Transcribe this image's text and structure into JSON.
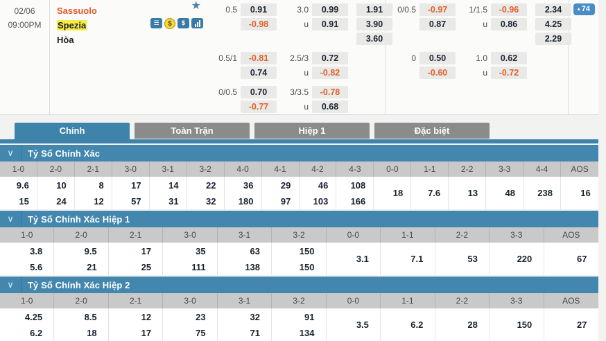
{
  "colors": {
    "accent_blue": "#3e83aa",
    "section_blue": "#4387ae",
    "badge_blue": "#4a8cc4",
    "icon_blue": "#3a7aa6",
    "coin_yellow": "#f6d63c",
    "odds_negative_orange": "#e2622d",
    "home_team_orange": "#e05a28",
    "highlight_yellow": "#f7ec46",
    "inactive_tab_gray": "#8b8b8b"
  },
  "match": {
    "date": "02/06",
    "time": "09:00PM",
    "home_team": "Sassuolo",
    "away_team": "Spezia",
    "draw_label": "Hòa",
    "count_badge": "74",
    "count_badge_arrow": "▴",
    "icons": [
      {
        "name": "bet-slip-icon",
        "glyph": "☰",
        "variant": "blue"
      },
      {
        "name": "dropping-odds-coin-icon",
        "glyph": "$",
        "variant": "coin"
      },
      {
        "name": "money-icon",
        "glyph": "$",
        "variant": "blue"
      },
      {
        "name": "bar-chart-icon",
        "glyph": "bars",
        "variant": "blue"
      }
    ]
  },
  "labels": {
    "under": "u"
  },
  "odds_groups": [
    {
      "name": "bookmaker-1",
      "blocks": [
        {
          "hdp_line": "0.5",
          "hdp": [
            "0.91",
            "-0.98"
          ],
          "ou_line": "3.0",
          "ou": [
            "0.99",
            "0.91"
          ],
          "x12": [
            "1.91",
            "3.90",
            "3.60"
          ]
        },
        {
          "hdp_line": "0.5/1",
          "hdp": [
            "-0.81",
            "0.74"
          ],
          "ou_line": "2.5/3",
          "ou": [
            "0.72",
            "-0.82"
          ]
        },
        {
          "hdp_line": "0/0.5",
          "hdp": [
            "0.70",
            "-0.77"
          ],
          "ou_line": "3/3.5",
          "ou": [
            "-0.78",
            "0.68"
          ]
        }
      ]
    },
    {
      "name": "bookmaker-2",
      "blocks": [
        {
          "hdp_line": "0/0.5",
          "hdp": [
            "-0.97",
            "0.87"
          ],
          "ou_line": "1/1.5",
          "ou": [
            "-0.96",
            "0.86"
          ],
          "x12": [
            "2.34",
            "4.25",
            "2.29"
          ]
        },
        {
          "hdp_line": "0",
          "hdp": [
            "0.50",
            "-0.60"
          ],
          "ou_line": "1.0",
          "ou": [
            "0.62",
            "-0.72"
          ]
        }
      ]
    }
  ],
  "tabs": [
    {
      "slug": "tab-chinh",
      "label": "Chính",
      "active": true
    },
    {
      "slug": "tab-toan-tran",
      "label": "Toàn Trận",
      "active": false
    },
    {
      "slug": "tab-hiep-1",
      "label": "Hiệp 1",
      "active": false
    },
    {
      "slug": "tab-dac-biet",
      "label": "Đặc biệt",
      "active": false
    }
  ],
  "score_tables": [
    {
      "title": "Tỷ Số Chính Xác",
      "columns": [
        {
          "score": "1-0",
          "odds": [
            "9.6",
            "15"
          ]
        },
        {
          "score": "2-0",
          "odds": [
            "10",
            "24"
          ]
        },
        {
          "score": "2-1",
          "odds": [
            "8",
            "12"
          ]
        },
        {
          "score": "3-0",
          "odds": [
            "17",
            "57"
          ]
        },
        {
          "score": "3-1",
          "odds": [
            "14",
            "31"
          ]
        },
        {
          "score": "3-2",
          "odds": [
            "22",
            "32"
          ]
        },
        {
          "score": "4-0",
          "odds": [
            "36",
            "180"
          ]
        },
        {
          "score": "4-1",
          "odds": [
            "29",
            "97"
          ]
        },
        {
          "score": "4-2",
          "odds": [
            "46",
            "103"
          ]
        },
        {
          "score": "4-3",
          "odds": [
            "108",
            "166"
          ]
        },
        {
          "score": "0-0",
          "odds": [
            "18"
          ]
        },
        {
          "score": "1-1",
          "odds": [
            "7.6"
          ]
        },
        {
          "score": "2-2",
          "odds": [
            "13"
          ]
        },
        {
          "score": "3-3",
          "odds": [
            "48"
          ]
        },
        {
          "score": "4-4",
          "odds": [
            "238"
          ]
        },
        {
          "score": "AOS",
          "odds": [
            "16"
          ]
        }
      ]
    },
    {
      "title": "Tỷ Số Chính Xác Hiệp 1",
      "columns": [
        {
          "score": "1-0",
          "odds": [
            "3.8",
            "5.6"
          ]
        },
        {
          "score": "2-0",
          "odds": [
            "9.5",
            "21"
          ]
        },
        {
          "score": "2-1",
          "odds": [
            "17",
            "25"
          ]
        },
        {
          "score": "3-0",
          "odds": [
            "35",
            "111"
          ]
        },
        {
          "score": "3-1",
          "odds": [
            "63",
            "138"
          ]
        },
        {
          "score": "3-2",
          "odds": [
            "150",
            "150"
          ]
        },
        {
          "score": "0-0",
          "odds": [
            "3.1"
          ]
        },
        {
          "score": "1-1",
          "odds": [
            "7.1"
          ]
        },
        {
          "score": "2-2",
          "odds": [
            "53"
          ]
        },
        {
          "score": "3-3",
          "odds": [
            "220"
          ]
        },
        {
          "score": "AOS",
          "odds": [
            "67"
          ]
        }
      ]
    },
    {
      "title": "Tỷ Số Chính Xác Hiệp 2",
      "columns": [
        {
          "score": "1-0",
          "odds": [
            "4.25",
            "6.2"
          ]
        },
        {
          "score": "2-0",
          "odds": [
            "8.5",
            "18"
          ]
        },
        {
          "score": "2-1",
          "odds": [
            "12",
            "17"
          ]
        },
        {
          "score": "3-0",
          "odds": [
            "23",
            "75"
          ]
        },
        {
          "score": "3-1",
          "odds": [
            "32",
            "71"
          ]
        },
        {
          "score": "3-2",
          "odds": [
            "91",
            "134"
          ]
        },
        {
          "score": "0-0",
          "odds": [
            "3.5"
          ]
        },
        {
          "score": "1-1",
          "odds": [
            "6.2"
          ]
        },
        {
          "score": "2-2",
          "odds": [
            "28"
          ]
        },
        {
          "score": "3-3",
          "odds": [
            "150"
          ]
        },
        {
          "score": "AOS",
          "odds": [
            "27"
          ]
        }
      ]
    }
  ]
}
